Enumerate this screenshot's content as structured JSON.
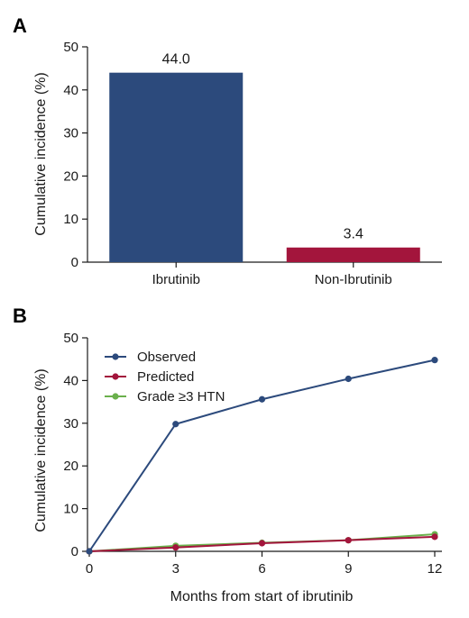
{
  "chart_data": [
    {
      "panel_label": "A",
      "type": "bar",
      "categories": [
        "Ibrutinib",
        "Non-Ibrutinib"
      ],
      "values": [
        44.0,
        3.4
      ],
      "data_labels": [
        "44.0",
        "3.4"
      ],
      "colors": [
        "#2c4a7c",
        "#a3153c"
      ],
      "title": "",
      "xlabel": "",
      "ylabel": "Cumulative incidence (%)",
      "ylim": [
        0,
        50
      ],
      "yticks": [
        0,
        10,
        20,
        30,
        40,
        50
      ],
      "grid": false
    },
    {
      "panel_label": "B",
      "type": "line",
      "x": [
        0,
        3,
        6,
        9,
        12
      ],
      "series": [
        {
          "name": "Observed",
          "values": [
            0,
            29.8,
            35.6,
            40.4,
            44.8
          ],
          "color": "#2c4a7c"
        },
        {
          "name": "Predicted",
          "values": [
            0,
            0.9,
            1.9,
            2.6,
            3.4
          ],
          "color": "#a3153c"
        },
        {
          "name": "Grade ≥3 HTN",
          "values": [
            0,
            1.3,
            2.0,
            2.6,
            4.0
          ],
          "color": "#6ab04c"
        }
      ],
      "title": "",
      "xlabel": "Months from start of ibrutinib",
      "ylabel": "Cumulative incidence (%)",
      "xlim": [
        0,
        12
      ],
      "xticks": [
        0,
        3,
        6,
        9,
        12
      ],
      "ylim": [
        0,
        50
      ],
      "yticks": [
        0,
        10,
        20,
        30,
        40,
        50
      ],
      "legend_position": "top-left",
      "grid": false
    }
  ]
}
